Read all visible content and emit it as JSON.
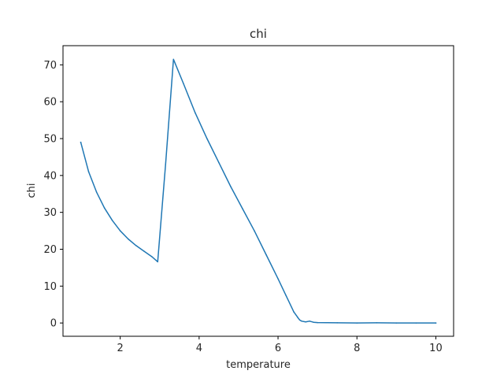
{
  "chart_data": {
    "type": "line",
    "title": "chi",
    "xlabel": "temperature",
    "ylabel": "chi",
    "xlim": [
      0.55,
      10.45
    ],
    "ylim": [
      -3.6,
      75.2
    ],
    "xticks": [
      2,
      4,
      6,
      8,
      10
    ],
    "yticks": [
      0,
      10,
      20,
      30,
      40,
      50,
      60,
      70
    ],
    "grid": false,
    "line_color": "#1f77b4",
    "series": [
      {
        "name": "chi",
        "x": [
          1.0,
          1.2,
          1.4,
          1.6,
          1.8,
          2.0,
          2.2,
          2.4,
          2.6,
          2.8,
          2.95,
          3.15,
          3.35,
          3.6,
          3.9,
          4.2,
          4.5,
          4.8,
          5.1,
          5.4,
          5.7,
          6.0,
          6.2,
          6.4,
          6.5,
          6.55,
          6.6,
          6.7,
          6.8,
          6.9,
          7.0,
          7.5,
          8.0,
          8.5,
          9.0,
          9.5,
          10.0
        ],
        "values": [
          49.0,
          41.0,
          35.5,
          31.2,
          27.8,
          25.0,
          22.8,
          21.0,
          19.5,
          18.0,
          16.6,
          43.0,
          71.5,
          65.0,
          57.0,
          50.0,
          43.5,
          37.0,
          31.0,
          25.0,
          18.5,
          12.0,
          7.5,
          3.0,
          1.5,
          0.8,
          0.5,
          0.3,
          0.5,
          0.2,
          0.1,
          0.05,
          0.0,
          0.05,
          0.0,
          0.0,
          0.0
        ]
      }
    ]
  }
}
